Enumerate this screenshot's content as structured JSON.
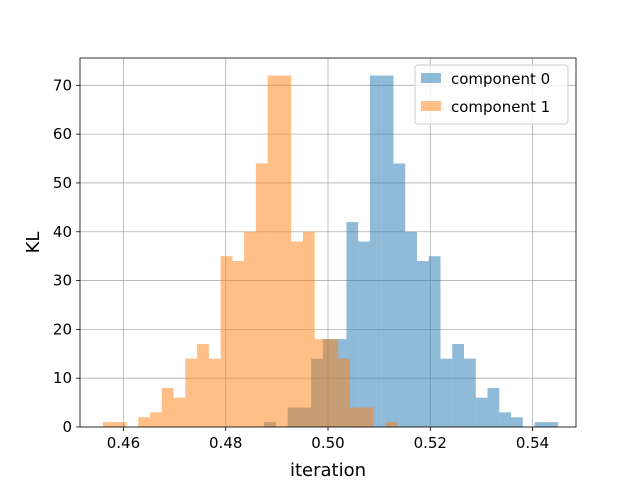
{
  "chart_data": {
    "type": "bar",
    "subtype": "histogram-overlay",
    "title": "",
    "xlabel": "iteration",
    "ylabel": "KL",
    "xlim": [
      0.4515,
      0.5485
    ],
    "ylim": [
      0,
      75.6
    ],
    "xticks": [
      0.46,
      0.48,
      0.5,
      0.52,
      0.54
    ],
    "xtick_labels": [
      "0.46",
      "0.48",
      "0.50",
      "0.52",
      "0.54"
    ],
    "yticks": [
      0,
      10,
      20,
      30,
      40,
      50,
      60,
      70
    ],
    "ytick_labels": [
      "0",
      "10",
      "20",
      "30",
      "40",
      "50",
      "60",
      "70"
    ],
    "grid": true,
    "legend_position": "top-right",
    "series": [
      {
        "name": "component 0",
        "color": "#1f77b4",
        "alpha": 0.5,
        "bins": [
          [
            0.4875,
            0.4898,
            1
          ],
          [
            0.4921,
            0.4944,
            4
          ],
          [
            0.4944,
            0.4967,
            4
          ],
          [
            0.4967,
            0.499,
            14
          ],
          [
            0.499,
            0.5013,
            18
          ],
          [
            0.5013,
            0.5036,
            18
          ],
          [
            0.5036,
            0.5059,
            42
          ],
          [
            0.5059,
            0.5082,
            38
          ],
          [
            0.5082,
            0.5105,
            72
          ],
          [
            0.5105,
            0.5128,
            72
          ],
          [
            0.5128,
            0.5151,
            54
          ],
          [
            0.5151,
            0.5174,
            40
          ],
          [
            0.5174,
            0.5197,
            34
          ],
          [
            0.5197,
            0.522,
            35
          ],
          [
            0.522,
            0.5243,
            14
          ],
          [
            0.5243,
            0.5266,
            17
          ],
          [
            0.5266,
            0.5289,
            14
          ],
          [
            0.5289,
            0.5312,
            6
          ],
          [
            0.5312,
            0.5335,
            8
          ],
          [
            0.5335,
            0.5358,
            3
          ],
          [
            0.5358,
            0.5381,
            2
          ],
          [
            0.5404,
            0.5427,
            1
          ],
          [
            0.5427,
            0.545,
            1
          ]
        ]
      },
      {
        "name": "component 1",
        "color": "#ff7f0e",
        "alpha": 0.5,
        "bins": [
          [
            0.456,
            0.4583,
            1
          ],
          [
            0.4583,
            0.4606,
            1
          ],
          [
            0.4629,
            0.4652,
            2
          ],
          [
            0.4652,
            0.4675,
            3
          ],
          [
            0.4675,
            0.4698,
            8
          ],
          [
            0.4698,
            0.4721,
            6
          ],
          [
            0.4721,
            0.4744,
            14
          ],
          [
            0.4744,
            0.4767,
            17
          ],
          [
            0.4767,
            0.479,
            14
          ],
          [
            0.479,
            0.4813,
            35
          ],
          [
            0.4813,
            0.4836,
            34
          ],
          [
            0.4836,
            0.4859,
            40
          ],
          [
            0.4859,
            0.4882,
            54
          ],
          [
            0.4882,
            0.4905,
            72
          ],
          [
            0.4905,
            0.4928,
            72
          ],
          [
            0.4928,
            0.4951,
            38
          ],
          [
            0.4951,
            0.4974,
            40
          ],
          [
            0.4974,
            0.4997,
            18
          ],
          [
            0.4997,
            0.502,
            18
          ],
          [
            0.502,
            0.5043,
            14
          ],
          [
            0.5043,
            0.5066,
            4
          ],
          [
            0.5066,
            0.5089,
            4
          ],
          [
            0.5112,
            0.5135,
            1
          ]
        ]
      }
    ]
  }
}
